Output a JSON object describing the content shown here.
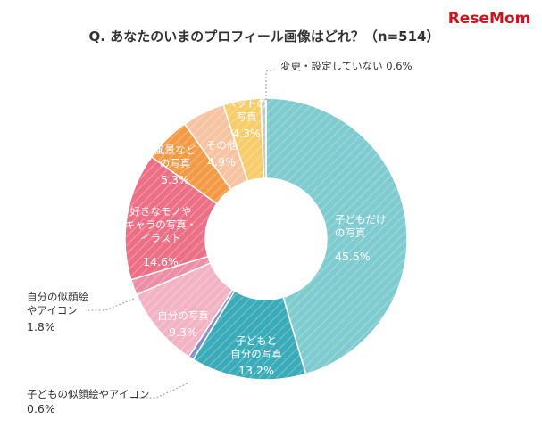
{
  "brand": "ReseMom",
  "chart_data": {
    "type": "pie",
    "title": "Q. あなたのいまのプロフィール画像はどれ？（n=514）",
    "slices": [
      {
        "name": "子どもだけの写真",
        "lines": [
          "子どもだけ",
          "の写真"
        ],
        "value": 45.5,
        "pct": "45.5%",
        "color": "#7ecbd0"
      },
      {
        "name": "子どもと自分の写真",
        "lines": [
          "子どもと",
          "自分の写真"
        ],
        "value": 13.2,
        "pct": "13.2%",
        "color": "#3aabb9"
      },
      {
        "name": "子どもの似顔絵やアイコン",
        "lines": [
          "子どもの似顔絵やアイコン"
        ],
        "value": 0.6,
        "pct": "0.6%",
        "color": "#7f8fc0"
      },
      {
        "name": "自分の写真",
        "lines": [
          "自分の写真"
        ],
        "value": 9.3,
        "pct": "9.3%",
        "color": "#f2b3c4"
      },
      {
        "name": "自分の似顔絵やアイコン",
        "lines": [
          "自分の似顔絵",
          "やアイコン"
        ],
        "value": 1.8,
        "pct": "1.8%",
        "color": "#ec8fa6"
      },
      {
        "name": "好きなモノやキャラの写真・イラスト",
        "lines": [
          "好きなモノや",
          "キャラの写真・",
          "イラスト"
        ],
        "value": 14.6,
        "pct": "14.6%",
        "color": "#ec6f86"
      },
      {
        "name": "風景などの写真",
        "lines": [
          "風景など",
          "の写真"
        ],
        "value": 5.3,
        "pct": "5.3%",
        "color": "#f39a45"
      },
      {
        "name": "その他",
        "lines": [
          "その他"
        ],
        "value": 4.9,
        "pct": "4.9%",
        "color": "#f7c4a3"
      },
      {
        "name": "ペットの写真",
        "lines": [
          "ペットの",
          "写真"
        ],
        "value": 4.3,
        "pct": "4.3%",
        "color": "#f7cd6b"
      },
      {
        "name": "変更・設定していない",
        "lines": [
          "変更・設定していない"
        ],
        "value": 0.6,
        "pct": "0.6%",
        "color": "#c9c9c9"
      }
    ]
  }
}
